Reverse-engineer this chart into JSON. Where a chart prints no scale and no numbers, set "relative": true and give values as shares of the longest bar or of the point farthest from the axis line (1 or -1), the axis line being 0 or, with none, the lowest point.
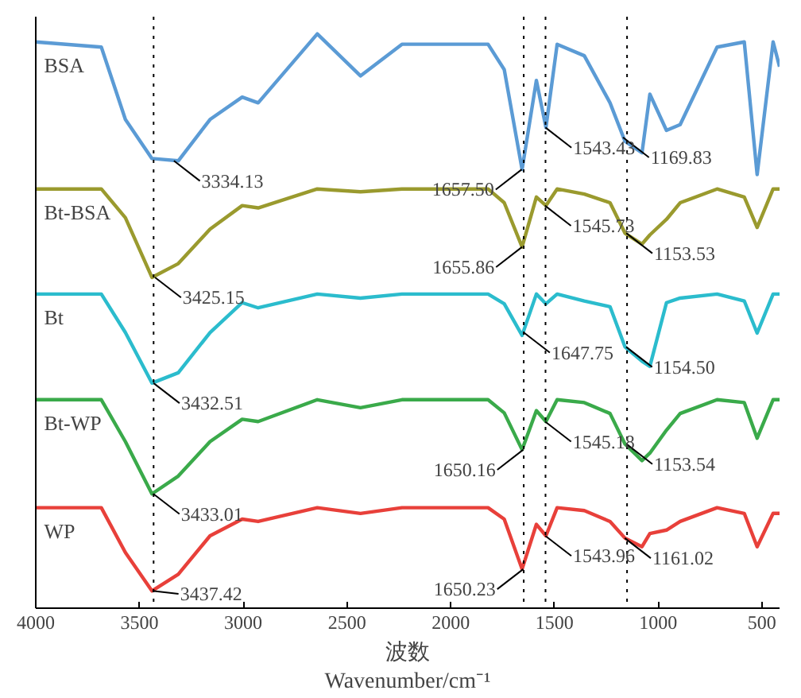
{
  "chart_data": {
    "type": "line",
    "relative": true,
    "xlabel": "波数\nWavenumber/cm⁻¹",
    "xlim": [
      4000,
      415
    ],
    "xticks": [
      4000,
      3500,
      3000,
      2500,
      2000,
      1500,
      1000,
      500
    ],
    "grid": false,
    "line_style": "solid",
    "marker": "none",
    "x": [
      4000,
      3684,
      3568,
      3440,
      3313,
      3160,
      3005,
      2928,
      2643,
      2435,
      2235,
      1820,
      1742,
      1656,
      1587,
      1541,
      1487,
      1356,
      1232,
      1160,
      1078,
      1040,
      960,
      894,
      716,
      585,
      523,
      446,
      415
    ],
    "series": [
      {
        "name": "BSA",
        "color": "#5b9bd5",
        "values": [
          0.986,
          0.977,
          0.851,
          0.783,
          0.779,
          0.851,
          0.89,
          0.88,
          1.0,
          0.927,
          0.982,
          0.982,
          0.938,
          0.764,
          0.919,
          0.837,
          0.982,
          0.962,
          0.88,
          0.813,
          0.793,
          0.895,
          0.832,
          0.842,
          0.977,
          0.986,
          0.755,
          0.986,
          0.943
        ]
      },
      {
        "name": "Bt-BSA",
        "color": "#9a9a2e",
        "values": [
          0.73,
          0.73,
          0.68,
          0.576,
          0.6,
          0.66,
          0.701,
          0.697,
          0.73,
          0.725,
          0.73,
          0.73,
          0.706,
          0.629,
          0.716,
          0.701,
          0.73,
          0.721,
          0.706,
          0.653,
          0.634,
          0.65,
          0.677,
          0.706,
          0.73,
          0.716,
          0.663,
          0.73,
          0.73
        ]
      },
      {
        "name": "Bt",
        "color": "#2bbccd",
        "values": [
          0.547,
          0.547,
          0.48,
          0.392,
          0.41,
          0.48,
          0.532,
          0.523,
          0.547,
          0.54,
          0.547,
          0.547,
          0.53,
          0.475,
          0.547,
          0.53,
          0.547,
          0.535,
          0.525,
          0.455,
          0.43,
          0.421,
          0.532,
          0.54,
          0.547,
          0.535,
          0.479,
          0.547,
          0.547
        ]
      },
      {
        "name": "Bt-WP",
        "color": "#3aaa4a",
        "values": [
          0.363,
          0.363,
          0.29,
          0.199,
          0.23,
          0.29,
          0.329,
          0.325,
          0.363,
          0.349,
          0.363,
          0.363,
          0.34,
          0.276,
          0.344,
          0.325,
          0.363,
          0.358,
          0.339,
          0.286,
          0.257,
          0.27,
          0.31,
          0.339,
          0.363,
          0.358,
          0.296,
          0.363,
          0.363
        ]
      },
      {
        "name": "WP",
        "color": "#e8403a",
        "values": [
          0.175,
          0.175,
          0.097,
          0.03,
          0.059,
          0.126,
          0.155,
          0.151,
          0.175,
          0.165,
          0.175,
          0.175,
          0.155,
          0.068,
          0.146,
          0.126,
          0.175,
          0.17,
          0.151,
          0.122,
          0.107,
          0.13,
          0.136,
          0.151,
          0.175,
          0.165,
          0.107,
          0.165,
          0.165
        ]
      }
    ],
    "ref_lines": [
      {
        "axis": "x",
        "value": 3432,
        "line_style": "dotted",
        "color": "#000000"
      },
      {
        "axis": "x",
        "value": 1648,
        "line_style": "dotted",
        "color": "#000000"
      },
      {
        "axis": "x",
        "value": 1543,
        "line_style": "dotted",
        "color": "#000000"
      },
      {
        "axis": "x",
        "value": 1150,
        "line_style": "dotted",
        "color": "#000000"
      }
    ],
    "annotations": [
      {
        "text": "3334.13",
        "x": 3334.13,
        "y": 0.779
      },
      {
        "text": "1657.50",
        "x": 1657.5,
        "y": 0.764
      },
      {
        "text": "1543.43",
        "x": 1543.43,
        "y": 0.837
      },
      {
        "text": "1169.83",
        "x": 1169.83,
        "y": 0.82
      },
      {
        "text": "3425.15",
        "x": 3425.15,
        "y": 0.576
      },
      {
        "text": "1655.86",
        "x": 1655.86,
        "y": 0.629
      },
      {
        "text": "1545.73",
        "x": 1545.73,
        "y": 0.701
      },
      {
        "text": "1153.53",
        "x": 1153.53,
        "y": 0.653
      },
      {
        "text": "3432.51",
        "x": 3432.51,
        "y": 0.392
      },
      {
        "text": "1647.75",
        "x": 1647.75,
        "y": 0.48
      },
      {
        "text": "1154.50",
        "x": 1154.5,
        "y": 0.455
      },
      {
        "text": "3433.01",
        "x": 3433.01,
        "y": 0.199
      },
      {
        "text": "1650.16",
        "x": 1650.16,
        "y": 0.276
      },
      {
        "text": "1545.18",
        "x": 1545.18,
        "y": 0.325
      },
      {
        "text": "1153.54",
        "x": 1153.54,
        "y": 0.286
      },
      {
        "text": "3437.42",
        "x": 3437.42,
        "y": 0.03
      },
      {
        "text": "1650.23",
        "x": 1650.23,
        "y": 0.068
      },
      {
        "text": "1543.96",
        "x": 1543.96,
        "y": 0.126
      },
      {
        "text": "1161.02",
        "x": 1161.02,
        "y": 0.122
      }
    ]
  }
}
